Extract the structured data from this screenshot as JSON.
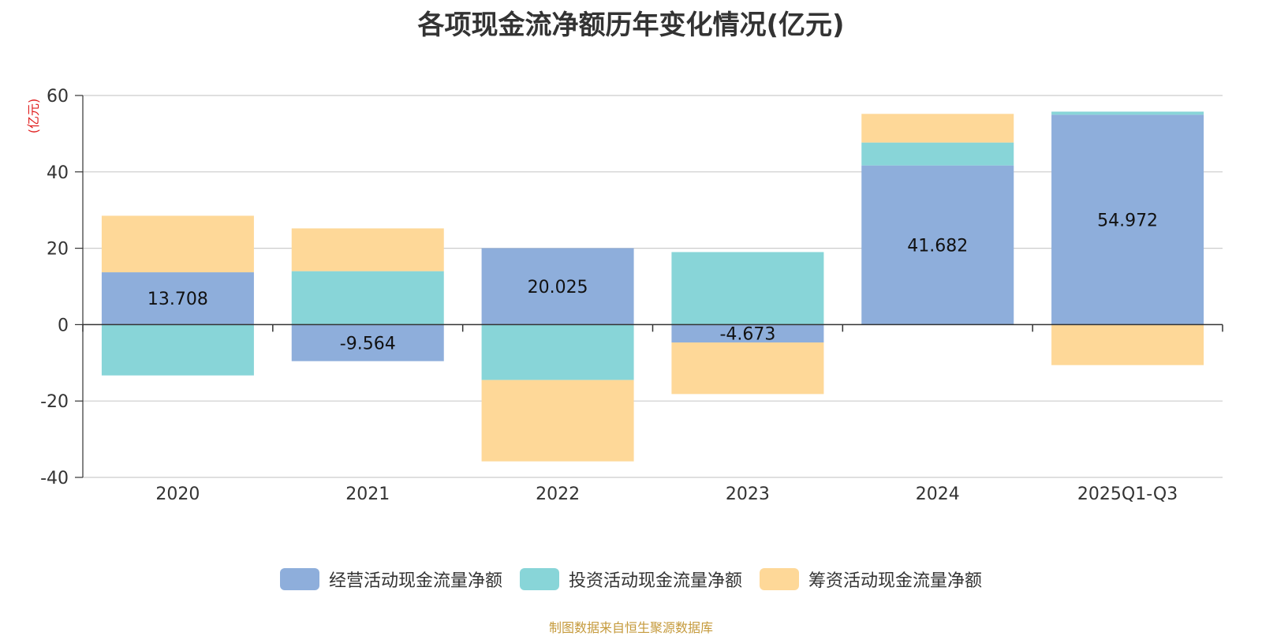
{
  "chart_data": {
    "type": "bar",
    "stacked": true,
    "title": "各项现金流净额历年变化情况(亿元)",
    "ylabel": "(亿元)",
    "xlabel": "",
    "ylim": [
      -40,
      60
    ],
    "yticks": [
      -40,
      -20,
      0,
      20,
      40,
      60
    ],
    "grid": true,
    "legend_position": "bottom",
    "categories": [
      "2020",
      "2021",
      "2022",
      "2023",
      "2024",
      "2025Q1-Q3"
    ],
    "series": [
      {
        "name": "经营活动现金流量净额",
        "color": "#8eaedb",
        "values": [
          13.708,
          -9.564,
          20.025,
          -4.673,
          41.682,
          54.972
        ],
        "labeled": true
      },
      {
        "name": "投资活动现金流量净额",
        "color": "#88d5d8",
        "values": [
          -13.3,
          14.0,
          -14.5,
          19.0,
          6.0,
          0.8
        ],
        "labeled": false
      },
      {
        "name": "筹资活动现金流量净额",
        "color": "#fed898",
        "values": [
          14.8,
          11.2,
          -21.3,
          -13.5,
          7.5,
          -10.6
        ],
        "labeled": false
      }
    ],
    "data_labels": [
      "13.708",
      "-9.564",
      "20.025",
      "-4.673",
      "41.682",
      "54.972"
    ]
  },
  "source_note": "制图数据来自恒生聚源数据库",
  "colors": {
    "axis": "#333333",
    "grid": "#cccccc",
    "ylabel": "#e02020",
    "source": "#c59a3c"
  }
}
